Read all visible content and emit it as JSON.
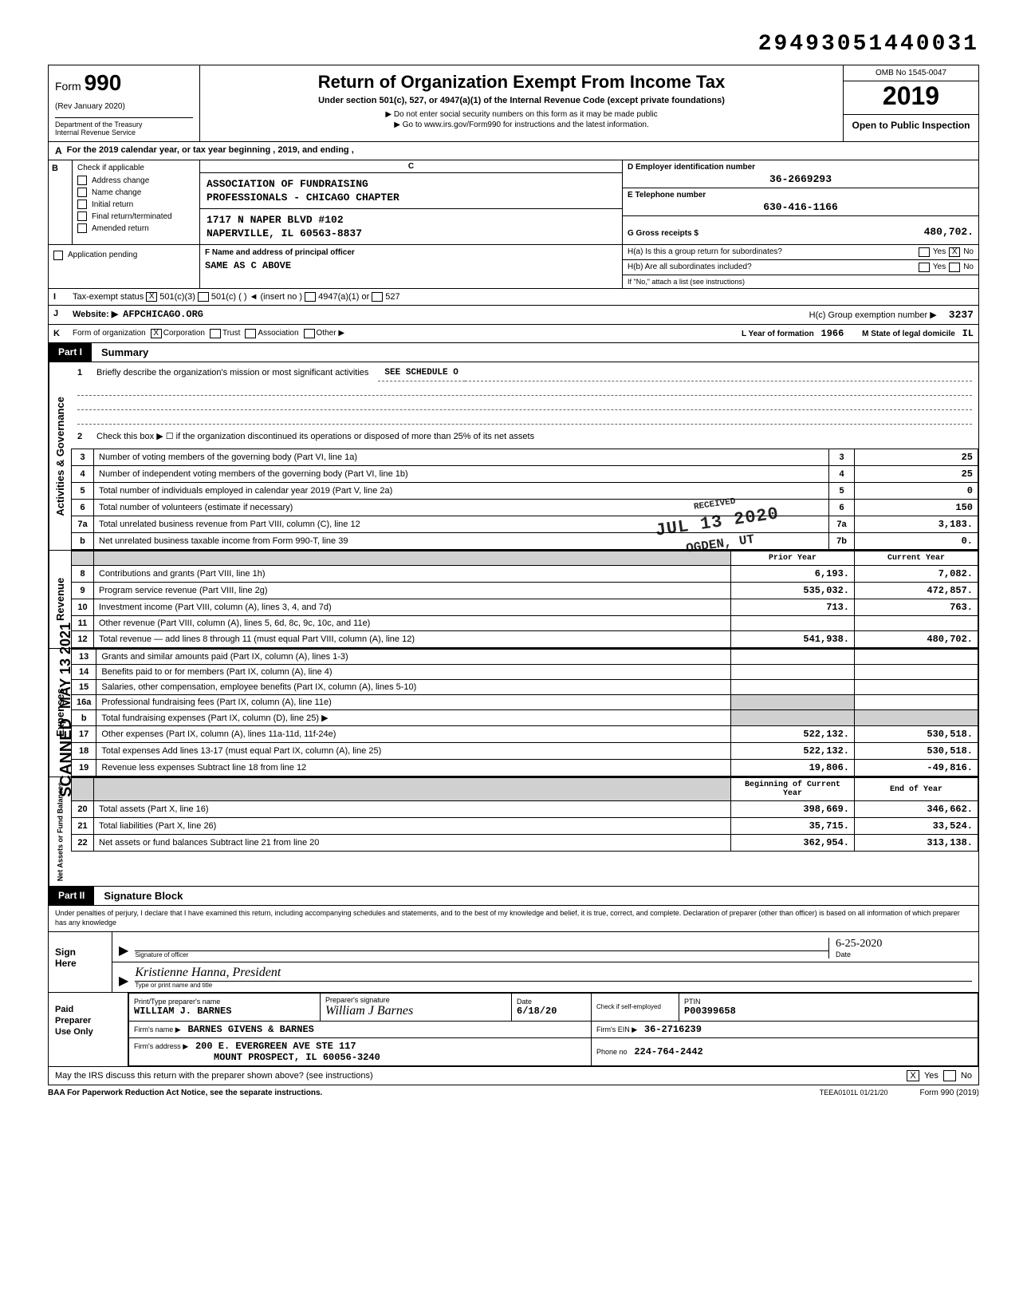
{
  "barcode": "29493051440031",
  "form": {
    "number": "990",
    "revision": "(Rev January 2020)",
    "dept": "Department of the Treasury",
    "irs": "Internal Revenue Service",
    "title": "Return of Organization Exempt From Income Tax",
    "subtitle": "Under section 501(c), 527, or 4947(a)(1) of the Internal Revenue Code (except private foundations)",
    "instr1": "▶ Do not enter social security numbers on this form as it may be made public",
    "instr2": "▶ Go to www.irs.gov/Form990 for instructions and the latest information.",
    "omb": "OMB No 1545-0047",
    "year": "2019",
    "open_public": "Open to Public Inspection"
  },
  "row_a": {
    "label": "A",
    "text": "For the 2019 calendar year, or tax year beginning                                              , 2019, and ending                                          ,"
  },
  "section_b": {
    "label": "B",
    "check_label": "Check if applicable",
    "checks": [
      "Address change",
      "Name change",
      "Initial return",
      "Final return/terminated",
      "Amended return",
      "Application pending"
    ],
    "c_label": "C",
    "org_name1": "ASSOCIATION OF FUNDRAISING",
    "org_name2": "PROFESSIONALS - CHICAGO CHAPTER",
    "org_addr1": "1717 N NAPER BLVD #102",
    "org_addr2": "NAPERVILLE, IL 60563-8837",
    "d_label": "D  Employer identification number",
    "ein": "36-2669293",
    "e_label": "E  Telephone number",
    "phone": "630-416-1166",
    "g_label": "G  Gross receipts $",
    "gross": "480,702."
  },
  "section_f": {
    "f_label": "F  Name and address of principal officer",
    "f_value": "SAME AS C ABOVE",
    "ha_label": "H(a) Is this a group return for subordinates?",
    "ha_no": "X",
    "hb_label": "H(b) Are all subordinates included?",
    "hb_note": "If \"No,\" attach a list  (see instructions)"
  },
  "row_i": {
    "label": "I",
    "text": "Tax-exempt status",
    "c3_check": "X",
    "opts": [
      "501(c)(3)",
      "501(c) (          ) ◄  (insert no )",
      "4947(a)(1) or",
      "527"
    ]
  },
  "row_j": {
    "label": "J",
    "web_label": "Website: ▶",
    "website": "AFPCHICAGO.ORG",
    "hc_label": "H(c) Group exemption number ▶",
    "hc_value": "3237"
  },
  "row_k": {
    "label": "K",
    "form_label": "Form of organization",
    "corp_check": "X",
    "opts": [
      "Corporation",
      "Trust",
      "Association",
      "Other ▶"
    ],
    "year_label": "L Year of formation",
    "year_value": "1966",
    "state_label": "M State of legal domicile",
    "state_value": "IL"
  },
  "part1": {
    "tab": "Part I",
    "title": "Summary",
    "vert_label_1": "Activities & Governance",
    "line1_label": "Briefly describe the organization's mission or most significant activities",
    "line1_value": "SEE SCHEDULE O",
    "line2": "Check this box ▶ ☐ if the organization discontinued its operations or disposed of more than 25% of its net assets",
    "items": [
      {
        "n": "3",
        "d": "Number of voting members of the governing body (Part VI, line 1a)",
        "c": "3",
        "v": "25"
      },
      {
        "n": "4",
        "d": "Number of independent voting members of the governing body (Part VI, line 1b)",
        "c": "4",
        "v": "25"
      },
      {
        "n": "5",
        "d": "Total number of individuals employed in calendar year 2019 (Part V, line 2a)",
        "c": "5",
        "v": "0"
      },
      {
        "n": "6",
        "d": "Total number of volunteers (estimate if necessary)",
        "c": "6",
        "v": "150"
      },
      {
        "n": "7a",
        "d": "Total unrelated business revenue from Part VIII, column (C), line 12",
        "c": "7a",
        "v": "3,183."
      },
      {
        "n": "b",
        "d": "Net unrelated business taxable income from Form 990-T, line 39",
        "c": "7b",
        "v": "0."
      }
    ],
    "col_prior": "Prior Year",
    "col_current": "Current Year",
    "vert_label_2": "Revenue",
    "revenue": [
      {
        "n": "8",
        "d": "Contributions and grants (Part VIII, line 1h)",
        "p": "6,193.",
        "c": "7,082."
      },
      {
        "n": "9",
        "d": "Program service revenue (Part VIII, line 2g)",
        "p": "535,032.",
        "c": "472,857."
      },
      {
        "n": "10",
        "d": "Investment income (Part VIII, column (A), lines 3, 4, and 7d)",
        "p": "713.",
        "c": "763."
      },
      {
        "n": "11",
        "d": "Other revenue (Part VIII, column (A), lines 5, 6d, 8c, 9c, 10c, and 11e)",
        "p": "",
        "c": ""
      },
      {
        "n": "12",
        "d": "Total revenue — add lines 8 through 11 (must equal Part VIII, column (A), line 12)",
        "p": "541,938.",
        "c": "480,702."
      }
    ],
    "vert_label_3": "Expenses",
    "expenses": [
      {
        "n": "13",
        "d": "Grants and similar amounts paid (Part IX, column (A), lines 1-3)",
        "p": "",
        "c": ""
      },
      {
        "n": "14",
        "d": "Benefits paid to or for members (Part IX, column (A), line 4)",
        "p": "",
        "c": ""
      },
      {
        "n": "15",
        "d": "Salaries, other compensation, employee benefits (Part IX, column (A), lines 5-10)",
        "p": "",
        "c": ""
      },
      {
        "n": "16a",
        "d": "Professional fundraising fees (Part IX, column (A), line 11e)",
        "p": "",
        "c": "",
        "shade_p": true,
        "shade_c": false
      },
      {
        "n": "b",
        "d": "Total fundraising expenses (Part IX, column (D), line 25) ▶",
        "p": "",
        "c": "",
        "shade_p": true,
        "shade_c": true
      },
      {
        "n": "17",
        "d": "Other expenses (Part IX, column (A), lines 11a-11d, 11f-24e)",
        "p": "522,132.",
        "c": "530,518."
      },
      {
        "n": "18",
        "d": "Total expenses  Add lines 13-17 (must equal Part IX, column (A), line 25)",
        "p": "522,132.",
        "c": "530,518."
      },
      {
        "n": "19",
        "d": "Revenue less expenses  Subtract line 18 from line 12",
        "p": "19,806.",
        "c": "-49,816."
      }
    ],
    "vert_label_4": "Net Assets or Fund Balances",
    "col_begin": "Beginning of Current Year",
    "col_end": "End of Year",
    "net": [
      {
        "n": "20",
        "d": "Total assets (Part X, line 16)",
        "p": "398,669.",
        "c": "346,662."
      },
      {
        "n": "21",
        "d": "Total liabilities (Part X, line 26)",
        "p": "35,715.",
        "c": "33,524."
      },
      {
        "n": "22",
        "d": "Net assets or fund balances  Subtract line 21 from line 20",
        "p": "362,954.",
        "c": "313,138."
      }
    ]
  },
  "part2": {
    "tab": "Part II",
    "title": "Signature Block",
    "declaration": "Under penalties of perjury, I declare that I have examined this return, including accompanying schedules and statements, and to the best of my knowledge and belief, it is true, correct, and complete. Declaration of preparer (other than officer) is based on all information of which preparer has any knowledge",
    "sign_here": "Sign\nHere",
    "sig_caption": "Signature of officer",
    "sig_date": "6-25-2020",
    "date_caption": "Date",
    "name_title": "Kristienne Hanna, President",
    "name_caption": "Type or print name and title"
  },
  "preparer": {
    "label": "Paid\nPreparer\nUse Only",
    "name_label": "Print/Type preparer's name",
    "name_value": "WILLIAM J. BARNES",
    "sig_label": "Preparer's signature",
    "sig_value": "William J Barnes",
    "date_label": "Date",
    "date_value": "6/18/20",
    "check_label": "Check         if self-employed",
    "ptin_label": "PTIN",
    "ptin_value": "P00399658",
    "firm_name_label": "Firm's name    ▶",
    "firm_name": "BARNES GIVENS & BARNES",
    "firm_addr_label": "Firm's address  ▶",
    "firm_addr1": "200 E. EVERGREEN AVE STE 117",
    "firm_addr2": "MOUNT PROSPECT, IL 60056-3240",
    "firm_ein_label": "Firm's EIN ▶",
    "firm_ein": "36-2716239",
    "phone_label": "Phone no",
    "phone_value": "224-764-2442"
  },
  "discuss": {
    "text": "May the IRS discuss this return with the preparer shown above? (see instructions)",
    "yes_check": "X",
    "yes": "Yes",
    "no": "No"
  },
  "footer": {
    "left": "BAA  For Paperwork Reduction Act Notice, see the separate instructions.",
    "mid": "TEEA0101L  01/21/20",
    "right": "Form 990 (2019)"
  },
  "stamps": {
    "scanned": "SCANNED",
    "date_stamp": "MAY 13 2021",
    "recv1": "RECEIVED",
    "recv2": "JUL 13 2020",
    "recv3": "OGDEN, UT"
  }
}
